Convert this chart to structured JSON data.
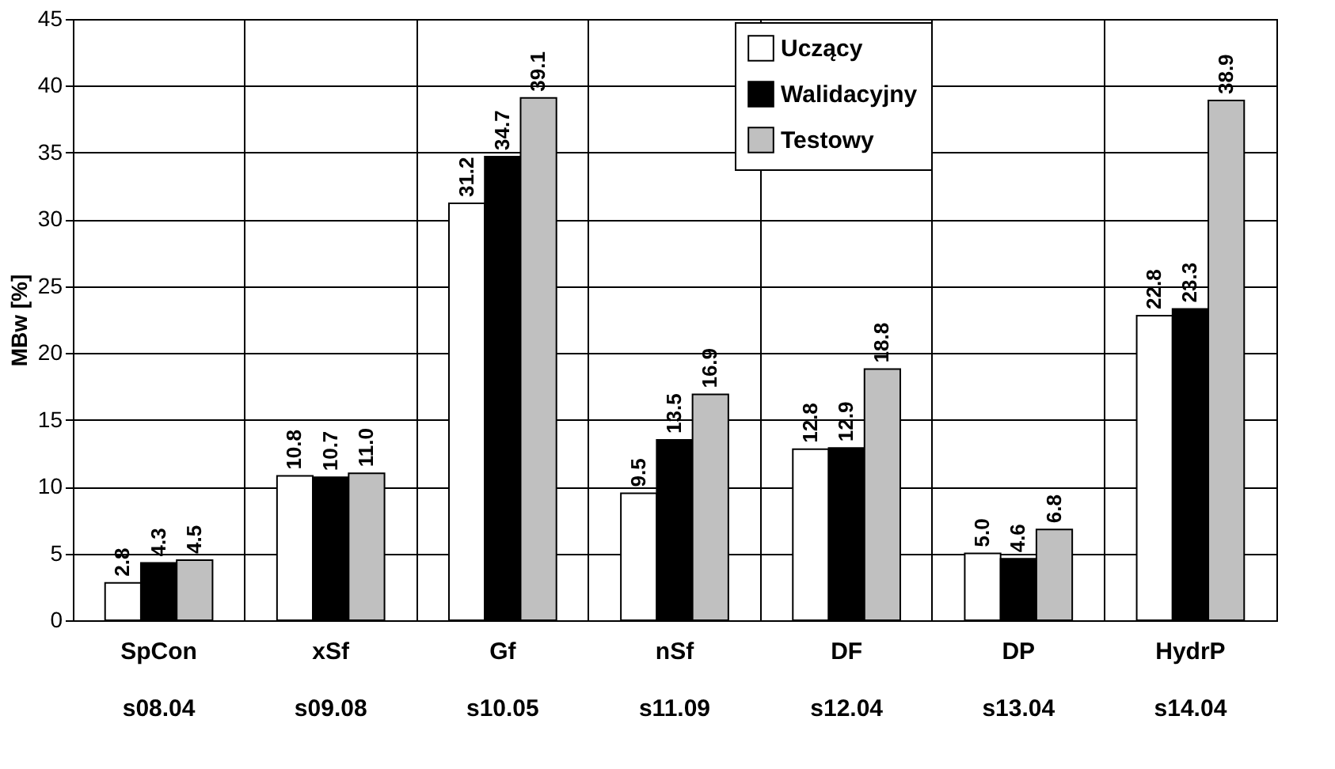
{
  "chart_data": {
    "type": "bar",
    "ylabel": "MBw [%]",
    "categories": [
      "SpCon\ns08.04",
      "xSf\ns09.08",
      "Gf\ns10.05",
      "nSf\ns11.09",
      "DF\ns12.04",
      "DP\ns13.04",
      "HydrP\ns14.04"
    ],
    "series": [
      {
        "name": "Uczący",
        "color": "#ffffff",
        "values": [
          2.8,
          10.8,
          31.2,
          9.5,
          12.8,
          5.0,
          22.8
        ],
        "value_labels": [
          "2.8",
          "10.8",
          "31.2",
          "9.5",
          "12.8",
          "5.0",
          "22.8"
        ]
      },
      {
        "name": "Walidacyjny",
        "color": "#000000",
        "values": [
          4.3,
          10.7,
          34.7,
          13.5,
          12.9,
          4.6,
          23.3
        ],
        "value_labels": [
          "4.3",
          "10.7",
          "34.7",
          "13.5",
          "12.9",
          "4.6",
          "23.3"
        ]
      },
      {
        "name": "Testowy",
        "color": "#c0c0c0",
        "values": [
          4.5,
          11.0,
          39.1,
          16.9,
          18.8,
          6.8,
          38.9
        ],
        "value_labels": [
          "4.5",
          "11.0",
          "39.1",
          "16.9",
          "18.8",
          "6.8",
          "38.9"
        ]
      }
    ],
    "ylim": [
      0,
      45
    ],
    "yticks": [
      0,
      5,
      10,
      15,
      20,
      25,
      30,
      35,
      40,
      45
    ],
    "grid": true,
    "legend": "top right"
  }
}
